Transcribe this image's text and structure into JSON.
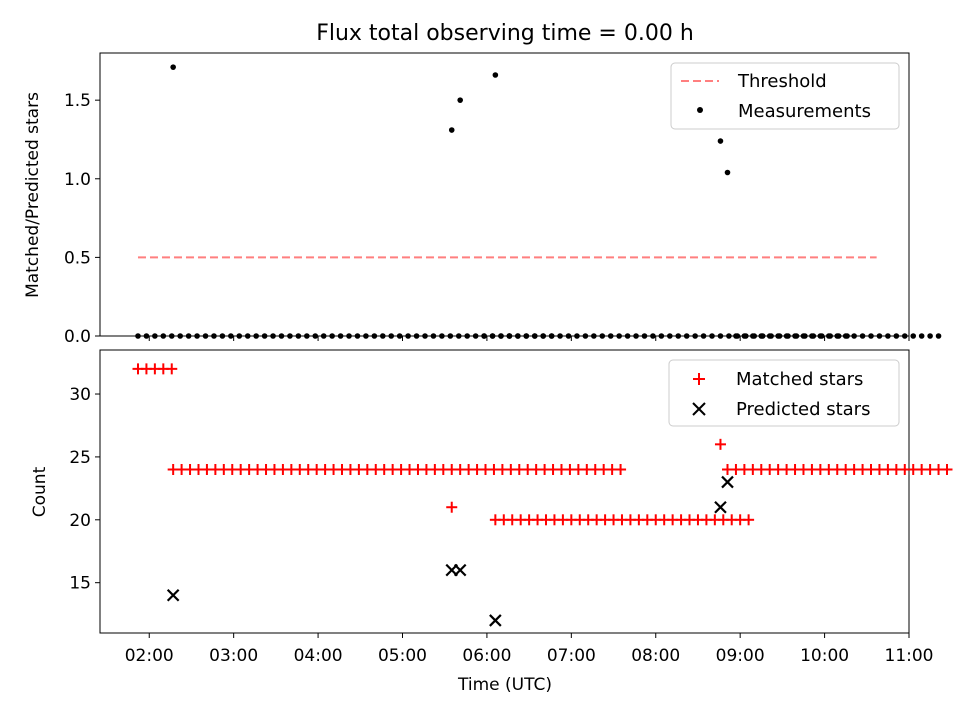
{
  "title": "Flux total observing time = 0.00 h",
  "colors": {
    "threshold": "#ff7f7f",
    "measurement": "#000000",
    "matched": "#ff0000",
    "predicted": "#000000"
  },
  "chart_data": [
    {
      "type": "scatter",
      "ylabel": "Matched/Predicted stars",
      "ylim": [
        0.0,
        1.8
      ],
      "yticks": [
        0.0,
        0.5,
        1.0,
        1.5
      ],
      "ytick_labels": [
        "0.0",
        "0.5",
        "1.0",
        "1.5"
      ],
      "legend_position": "top-right",
      "legend": [
        "Threshold",
        "Measurements"
      ],
      "threshold": {
        "name": "Threshold",
        "y": 0.5,
        "x_start": "01:52",
        "x_end": "10:37"
      },
      "measurement_groups": [
        {
          "start": "01:52",
          "step_min": 6,
          "count": 5,
          "y": 0
        },
        {
          "start": "02:22",
          "step_min": 6,
          "count": 45,
          "y": 0
        },
        {
          "start": "05:58",
          "step_min": 6,
          "count": 4,
          "y": 0
        },
        {
          "start": "06:16",
          "step_min": 6,
          "count": 41,
          "y": 0
        },
        {
          "start": "08:57",
          "step_min": 6,
          "count": 25,
          "y": 0
        }
      ],
      "measurements_highlight": [
        {
          "x": "02:17",
          "y": 1.71
        },
        {
          "x": "05:35",
          "y": 1.31
        },
        {
          "x": "05:41",
          "y": 1.5
        },
        {
          "x": "06:06",
          "y": 1.66
        },
        {
          "x": "08:46",
          "y": 1.24
        },
        {
          "x": "08:51",
          "y": 1.04
        }
      ]
    },
    {
      "type": "scatter",
      "xlabel": "Time (UTC)",
      "ylabel": "Count",
      "xlim": [
        "01:25",
        "11:00"
      ],
      "xticks": [
        "02:00",
        "03:00",
        "04:00",
        "05:00",
        "06:00",
        "07:00",
        "08:00",
        "09:00",
        "10:00",
        "11:00"
      ],
      "ylim": [
        11,
        33.5
      ],
      "yticks": [
        15,
        20,
        25,
        30
      ],
      "ytick_labels": [
        "15",
        "20",
        "25",
        "30"
      ],
      "legend_position": "top-right",
      "legend": [
        "Matched stars",
        "Predicted stars"
      ],
      "matched_groups": [
        {
          "start": "01:52",
          "step_min": 6,
          "count": 5,
          "y": 32
        },
        {
          "start": "02:17",
          "step_min": 6,
          "count": 54,
          "y": 24
        },
        {
          "start": "06:06",
          "step_min": 6,
          "count": 31,
          "y": 20
        },
        {
          "start": "08:51",
          "step_min": 6,
          "count": 27,
          "y": 24
        }
      ],
      "matched_single": [
        {
          "x": "05:35",
          "y": 21
        },
        {
          "x": "08:46",
          "y": 26
        }
      ],
      "predicted": [
        {
          "x": "02:17",
          "y": 14
        },
        {
          "x": "05:35",
          "y": 16
        },
        {
          "x": "05:41",
          "y": 16
        },
        {
          "x": "06:06",
          "y": 12
        },
        {
          "x": "08:46",
          "y": 21
        },
        {
          "x": "08:51",
          "y": 23
        }
      ]
    }
  ]
}
